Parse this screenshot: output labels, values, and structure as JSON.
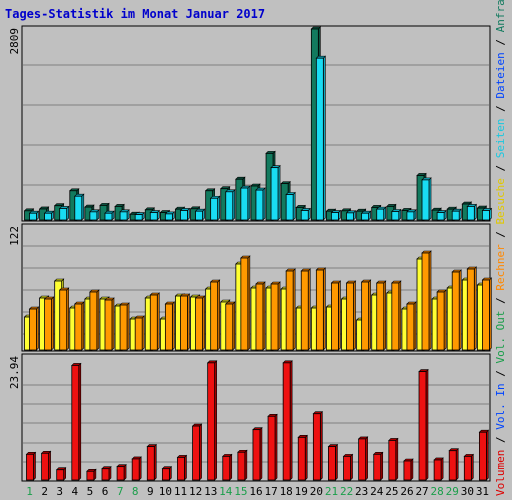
{
  "title": "Tages-Statistik im Monat Januar 2017",
  "colors": {
    "background": "#c0c0c0",
    "title": "#0000cc",
    "anfragen_front": "#127a5e",
    "anfragen_side": "#0c5441",
    "dateien_front": "#1f54d9",
    "dateien_side": "#153ba0",
    "seiten_front": "#19dcf3",
    "seiten_side": "#0fa8bb",
    "besuche_front": "#ffff33",
    "besuche_side": "#c9c920",
    "rechner_front": "#ff9900",
    "rechner_side": "#cc6f00",
    "volumen_front": "#ee1111",
    "volumen_side": "#a80000",
    "day_weekday": "#000000",
    "day_weekend": "#1a9e4a"
  },
  "right_legend": [
    {
      "text": "Volumen",
      "color": "#dd0000"
    },
    {
      "text": " / ",
      "color": "#000000"
    },
    {
      "text": "Vol. In",
      "color": "#0044ff"
    },
    {
      "text": " / ",
      "color": "#000000"
    },
    {
      "text": "Vol. Out",
      "color": "#1a9e4a"
    },
    {
      "text": " / ",
      "color": "#000000"
    },
    {
      "text": "Rechner",
      "color": "#ff8800"
    },
    {
      "text": " / ",
      "color": "#000000"
    },
    {
      "text": "Besuche",
      "color": "#e0c800"
    },
    {
      "text": " / ",
      "color": "#000000"
    },
    {
      "text": "Seiten",
      "color": "#19c8e0"
    },
    {
      "text": " / ",
      "color": "#000000"
    },
    {
      "text": "Dateien",
      "color": "#0044ff"
    },
    {
      "text": " / ",
      "color": "#000000"
    },
    {
      "text": "Anfragen",
      "color": "#127a5e"
    }
  ],
  "chart_data": {
    "type": "bar",
    "title": "Tages-Statistik im Monat Januar 2017",
    "categories": [
      "1",
      "2",
      "3",
      "4",
      "5",
      "6",
      "7",
      "8",
      "9",
      "10",
      "11",
      "12",
      "13",
      "14",
      "15",
      "16",
      "17",
      "18",
      "19",
      "20",
      "21",
      "22",
      "23",
      "24",
      "25",
      "26",
      "27",
      "28",
      "29",
      "30",
      "31"
    ],
    "weekend_days": [
      "1",
      "7",
      "8",
      "14",
      "15",
      "21",
      "22",
      "28",
      "29"
    ],
    "panels": [
      {
        "name": "hits",
        "ymax_label": "2809",
        "ylim": [
          0,
          2809
        ],
        "series": [
          {
            "name": "Anfragen",
            "values": [
              135,
              162,
              210,
              430,
              190,
              215,
              200,
              85,
              150,
              110,
              160,
              165,
              430,
              460,
              600,
              500,
              980,
              535,
              185,
              2809,
              130,
              135,
              130,
              185,
              200,
              140,
              655,
              145,
              160,
              235,
              175
            ]
          },
          {
            "name": "Seiten",
            "values": [
              100,
              100,
              170,
              350,
              120,
              100,
              120,
              80,
              110,
              90,
              140,
              130,
              320,
              415,
              470,
              440,
              770,
              375,
              140,
              2380,
              110,
              105,
              100,
              160,
              125,
              120,
              590,
              110,
              130,
              200,
              140
            ]
          }
        ]
      },
      {
        "name": "visits",
        "ymax_label": "122",
        "ylim": [
          0,
          122
        ],
        "series": [
          {
            "name": "Besuche",
            "values": [
              33,
              52,
              69,
              42,
              51,
              51,
              44,
              31,
              52,
              31,
              54,
              53,
              61,
              48,
              86,
              62,
              62,
              61,
              42,
              42,
              43,
              51,
              30,
              55,
              57,
              41,
              91,
              51,
              62,
              70,
              65
            ]
          },
          {
            "name": "Rechner",
            "values": [
              41,
              51,
              60,
              46,
              58,
              50,
              45,
              32,
              55,
              46,
              54,
              52,
              68,
              46,
              92,
              66,
              66,
              79,
              79,
              80,
              67,
              67,
              68,
              67,
              67,
              46,
              97,
              58,
              78,
              81,
              70
            ]
          }
        ]
      },
      {
        "name": "volume",
        "ymax_label": "23.94",
        "ylim": [
          0,
          23.94
        ],
        "series": [
          {
            "name": "Volumen",
            "values": [
              5.0,
              5.2,
              2.0,
              22.3,
              1.7,
              2.2,
              2.6,
              4.1,
              6.5,
              2.2,
              4.4,
              10.5,
              22.8,
              4.6,
              5.4,
              9.8,
              12.4,
              22.8,
              8.3,
              12.9,
              6.5,
              4.6,
              8.0,
              5.0,
              7.7,
              3.7,
              21.1,
              3.9,
              5.7,
              4.6,
              9.3
            ]
          }
        ]
      }
    ]
  }
}
